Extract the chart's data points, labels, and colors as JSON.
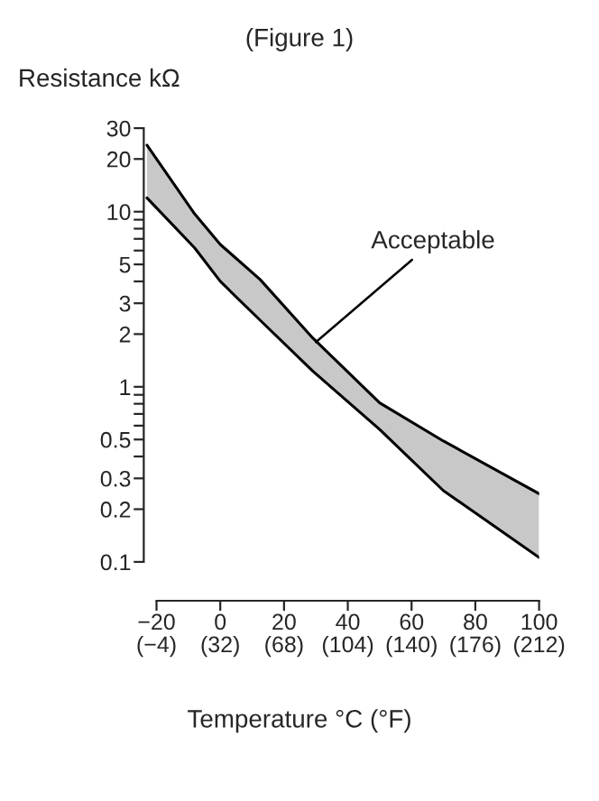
{
  "chart_data": {
    "type": "line",
    "title": "(Figure 1)",
    "ylabel": "Resistance kΩ",
    "xlabel": "Temperature °C (°F)",
    "series": [
      {
        "color": "#000000",
        "x": [
          -23,
          -8,
          0,
          12.5,
          29,
          50,
          70,
          100
        ],
        "values": [
          24,
          9.7,
          6.5,
          4.1,
          1.9,
          0.81,
          0.49,
          0.245
        ]
      },
      {
        "color": "#000000",
        "x": [
          -23,
          -8,
          0,
          12.5,
          29,
          50,
          70,
          100
        ],
        "values": [
          12,
          6.2,
          4.0,
          2.4,
          1.23,
          0.57,
          0.255,
          0.106
        ],
        "lower": [
          12,
          6.2,
          4.0,
          2.4,
          1.23,
          0.57,
          0.255,
          0.106
        ],
        "upper": [
          24,
          9.7,
          6.5,
          4.1,
          1.9,
          0.81,
          0.49,
          0.245
        ]
      }
    ],
    "annotations": [
      {
        "text": "Acceptable",
        "x": 30,
        "y": 1.8
      }
    ],
    "log": "y",
    "grid": false,
    "xlim": [
      -24,
      100
    ],
    "xticks": [
      -20,
      0,
      20,
      40,
      60,
      80,
      100
    ],
    "x2lim": [
      -11.2,
      212
    ],
    "x2ticks": [
      {
        "value": -4,
        "label": "(−4)"
      },
      {
        "value": 32,
        "label": "(32)"
      },
      {
        "value": 68,
        "label": "(68)"
      },
      {
        "value": 104,
        "label": "(104)"
      },
      {
        "value": 140,
        "label": "(140)"
      },
      {
        "value": 176,
        "label": "(176)"
      },
      {
        "value": 212,
        "label": "(212)"
      }
    ],
    "ylim": [
      0.06,
      30
    ],
    "yticks": [
      0.1,
      0.2,
      0.3,
      {
        "value": 0.4,
        "label": null
      },
      0.5,
      {
        "value": 0.6,
        "label": null
      },
      {
        "value": 0.7,
        "label": null
      },
      {
        "value": 0.8,
        "label": null
      },
      {
        "value": 0.9,
        "label": null
      },
      1,
      2,
      3,
      {
        "value": 4,
        "label": null
      },
      5,
      {
        "value": 6,
        "label": null
      },
      {
        "value": 7,
        "label": null
      },
      {
        "value": 8,
        "label": null
      },
      {
        "value": 9,
        "label": null
      },
      10,
      20,
      30
    ]
  }
}
